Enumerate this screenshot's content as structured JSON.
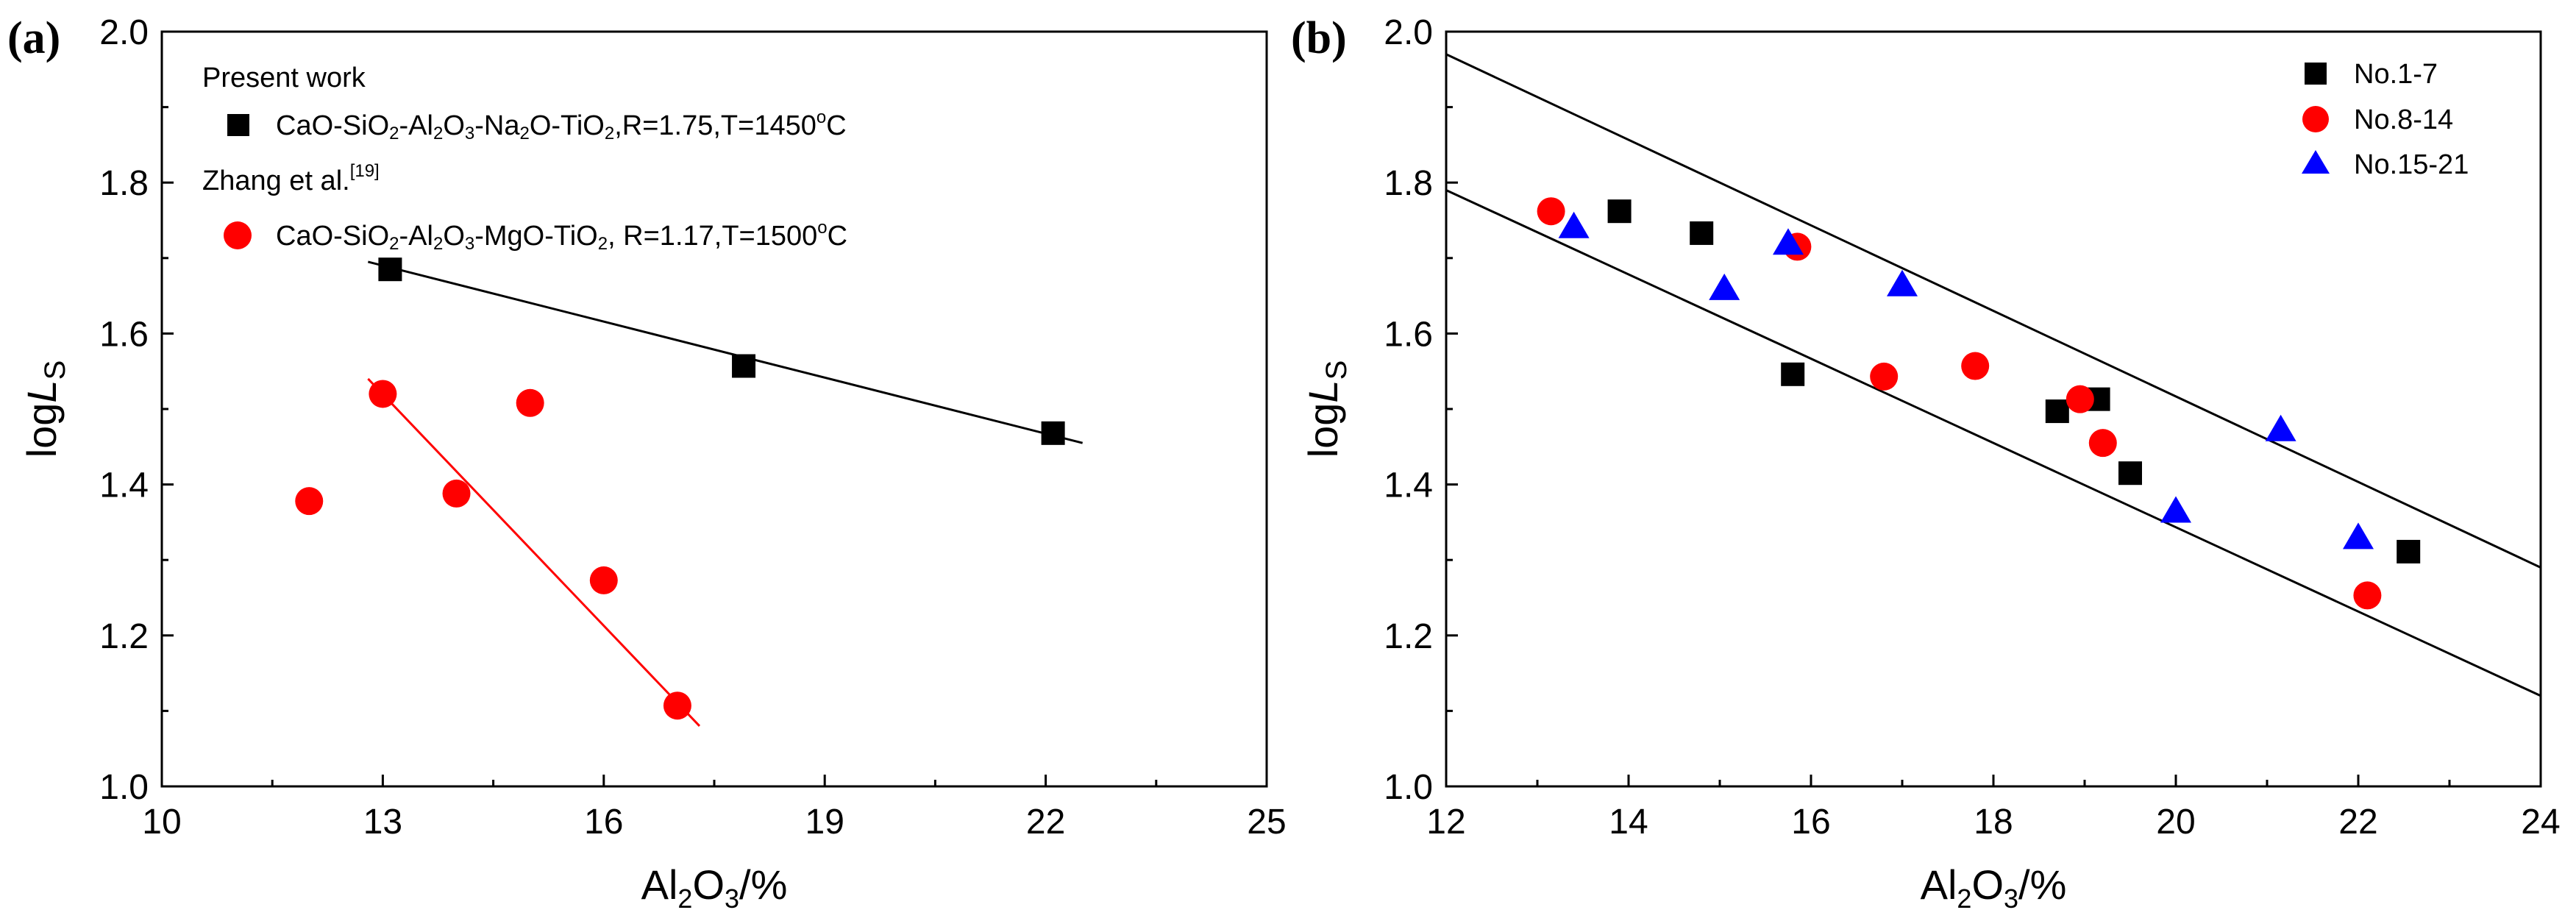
{
  "chart_data": [
    {
      "type": "scatter",
      "panel_label": "(a)",
      "xlabel_main": "Al",
      "xlabel_sub1": "2",
      "xlabel_mid": "O",
      "xlabel_sub2": "3",
      "xlabel_tail": "/%",
      "ylabel_main": "log",
      "ylabel_italic": "L",
      "ylabel_sub": "S",
      "xlim": [
        10,
        25
      ],
      "ylim": [
        1.0,
        2.0
      ],
      "xticks": [
        "10",
        "13",
        "16",
        "19",
        "22",
        "25"
      ],
      "yticks": [
        "1.0",
        "1.2",
        "1.4",
        "1.6",
        "1.8",
        "2.0"
      ],
      "legend": {
        "header1": "Present work",
        "header2": "Zhang et al.",
        "header2_ref": "[19]",
        "entry1": "CaO-SiO2-Al2O3-Na2O-TiO2,R=1.75,T=1450°C",
        "entry2": "CaO-SiO2-Al2O3-MgO-TiO2, R=1.17,T=1500°C"
      },
      "series": [
        {
          "name": "Present work",
          "marker": "square",
          "color": "#000000",
          "x": [
            13.1,
            17.9,
            22.1
          ],
          "y": [
            1.685,
            1.557,
            1.468
          ],
          "fit": {
            "x": [
              12.8,
              22.5
            ],
            "y": [
              1.695,
              1.455
            ]
          }
        },
        {
          "name": "Zhang et al.",
          "marker": "circle",
          "color": "#ff0000",
          "x": [
            12.0,
            13.0,
            14.0,
            15.0,
            16.0,
            17.0
          ],
          "y": [
            1.378,
            1.52,
            1.388,
            1.508,
            1.273,
            1.107
          ],
          "fit": {
            "x": [
              12.8,
              17.3
            ],
            "y": [
              1.54,
              1.08
            ]
          }
        }
      ]
    },
    {
      "type": "scatter",
      "panel_label": "(b)",
      "xlabel_main": "Al",
      "xlabel_sub1": "2",
      "xlabel_mid": "O",
      "xlabel_sub2": "3",
      "xlabel_tail": "/%",
      "ylabel_main": "log",
      "ylabel_italic": "L",
      "ylabel_sub": "S",
      "xlim": [
        12,
        24
      ],
      "ylim": [
        1.0,
        2.0
      ],
      "xticks": [
        "12",
        "14",
        "16",
        "18",
        "20",
        "22",
        "24"
      ],
      "yticks": [
        "1.0",
        "1.2",
        "1.4",
        "1.6",
        "1.8",
        "2.0"
      ],
      "legend_entries": [
        "No.1-7",
        "No.8-14",
        "No.15-21"
      ],
      "series": [
        {
          "name": "No.1-7",
          "marker": "square",
          "color": "#000000",
          "x": [
            13.9,
            14.8,
            15.8,
            18.7,
            19.15,
            19.5,
            22.55
          ],
          "y": [
            1.762,
            1.733,
            1.546,
            1.497,
            1.513,
            1.415,
            1.311
          ]
        },
        {
          "name": "No.8-14",
          "marker": "circle",
          "color": "#ff0000",
          "x": [
            13.15,
            15.85,
            16.8,
            17.8,
            18.95,
            19.2,
            22.1
          ],
          "y": [
            1.762,
            1.715,
            1.543,
            1.557,
            1.513,
            1.455,
            1.253
          ]
        },
        {
          "name": "No.15-21",
          "marker": "triangle",
          "color": "#0000ff",
          "x": [
            13.4,
            15.05,
            15.75,
            17.0,
            20.0,
            21.15,
            22.0
          ],
          "y": [
            1.742,
            1.66,
            1.72,
            1.665,
            1.365,
            1.473,
            1.33
          ]
        }
      ],
      "bounds": [
        {
          "x": [
            12,
            24
          ],
          "y": [
            1.97,
            1.29
          ]
        },
        {
          "x": [
            12,
            24
          ],
          "y": [
            1.79,
            1.12
          ]
        }
      ]
    }
  ]
}
